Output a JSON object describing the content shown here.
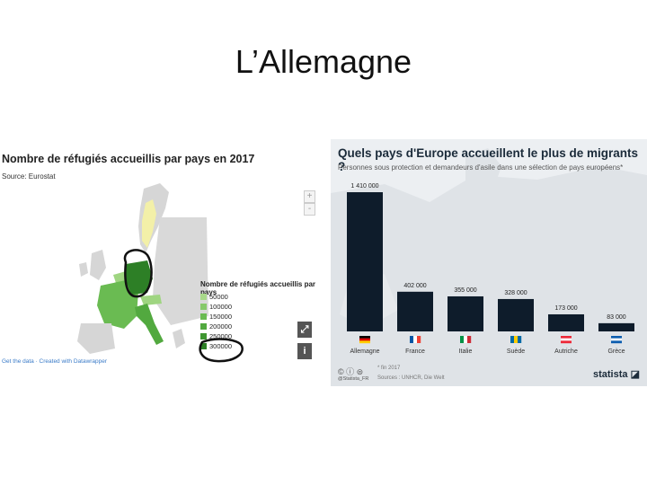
{
  "slide": {
    "title": "L’Allemagne"
  },
  "left_panel": {
    "title": "Nombre de réfugiés accueillis par pays en 2017",
    "source": "Source: Eurostat",
    "zoom_in": "+",
    "zoom_out": "-",
    "legend_title": "Nombre de réfugiés accueillis par pays",
    "legend": [
      {
        "label": "50000",
        "color": "#a8d88a"
      },
      {
        "label": "100000",
        "color": "#86c96a"
      },
      {
        "label": "150000",
        "color": "#6abb52"
      },
      {
        "label": "200000",
        "color": "#52a93f"
      },
      {
        "label": "250000",
        "color": "#3f9631"
      },
      {
        "label": "300000",
        "color": "#2d7f26"
      }
    ],
    "footer": "Get the data · Created with Datawrapper",
    "expand_icon": "expand-icon",
    "info_icon": "info-icon",
    "colors": {
      "highlight": "#f3f0a8",
      "base": "#d6d6d6",
      "annotation": "#111111"
    }
  },
  "right_panel": {
    "title": "Quels pays d'Europe accueillent le plus de migrants ?",
    "subtitle": "Personnes sous protection et demandeurs d'asile dans une sélection de pays européens*",
    "footnote": "* fin 2017",
    "sources": "Sources : UNHCR, Die Welt",
    "license": "© ⓘ ⊜",
    "user": "@Statista_FR",
    "brand": "statista ◪",
    "bar_color": "#0e1c2b"
  },
  "chart_data": {
    "type": "bar",
    "title": "Quels pays d'Europe accueillent le plus de migrants ?",
    "subtitle": "Personnes sous protection et demandeurs d'asile dans une sélection de pays européens*",
    "categories": [
      "Allemagne",
      "France",
      "Italie",
      "Suède",
      "Autriche",
      "Grèce"
    ],
    "values": [
      1410000,
      402000,
      355000,
      328000,
      173000,
      83000
    ],
    "value_labels": [
      "1 410 000",
      "402 000",
      "355 000",
      "328 000",
      "173 000",
      "83 000"
    ],
    "flags": [
      [
        "#000000",
        "#dd0000",
        "#ffce00"
      ],
      [
        "#0055a4",
        "#ffffff",
        "#ef4135"
      ],
      [
        "#009246",
        "#ffffff",
        "#ce2b37"
      ],
      [
        "#006aa7",
        "#fecc00",
        "#006aa7"
      ],
      [
        "#ed2939",
        "#ffffff",
        "#ed2939"
      ],
      [
        "#0d5eaf",
        "#ffffff",
        "#0d5eaf"
      ]
    ],
    "ylim": [
      0,
      1410000
    ],
    "xlabel": "",
    "ylabel": "",
    "grid": false
  }
}
